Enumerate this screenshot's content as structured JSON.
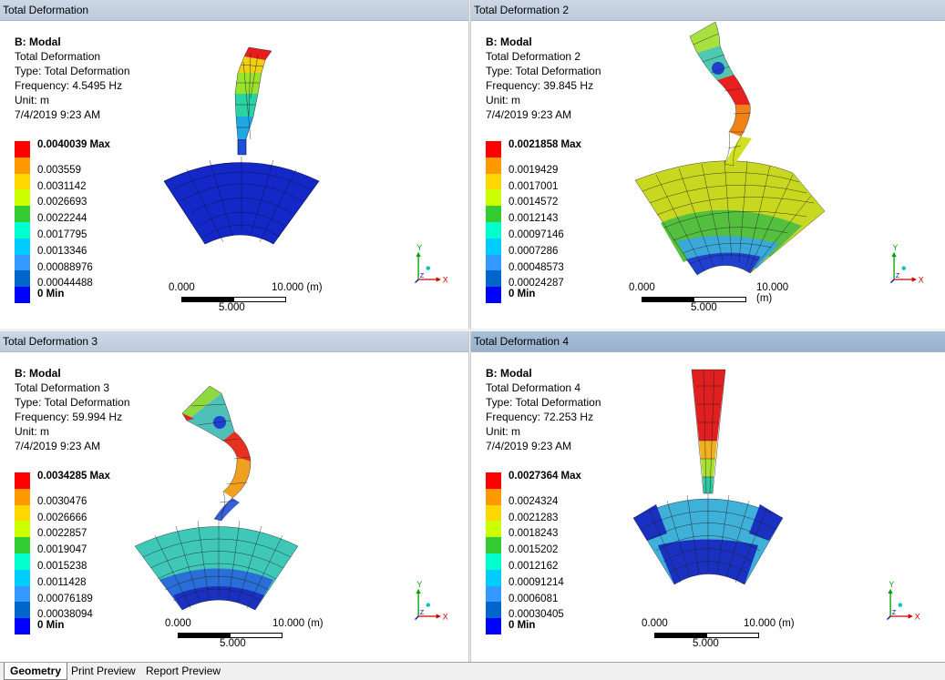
{
  "viewports": [
    {
      "header": "Total Deformation",
      "active": false,
      "info": [
        "B: Modal",
        "Total Deformation",
        "Type: Total Deformation",
        "Frequency: 4.5495 Hz",
        "Unit: m",
        "7/4/2019 9:23 AM"
      ],
      "legend": [
        "0.0040039 Max",
        "0.003559",
        "0.0031142",
        "0.0026693",
        "0.0022244",
        "0.0017795",
        "0.0013346",
        "0.00088976",
        "0.00044488",
        "0 Min"
      ],
      "scale": {
        "left": "0.000",
        "right": "10.000 (m)",
        "mid": "5.000"
      }
    },
    {
      "header": "Total Deformation 2",
      "active": false,
      "info": [
        "B: Modal",
        "Total Deformation 2",
        "Type: Total Deformation",
        "Frequency: 39.845 Hz",
        "Unit: m",
        "7/4/2019 9:23 AM"
      ],
      "legend": [
        "0.0021858 Max",
        "0.0019429",
        "0.0017001",
        "0.0014572",
        "0.0012143",
        "0.00097146",
        "0.0007286",
        "0.00048573",
        "0.00024287",
        "0 Min"
      ],
      "scale": {
        "left": "0.000",
        "right": "10.000 (m)",
        "mid": "5.000"
      }
    },
    {
      "header": "Total Deformation 3",
      "active": false,
      "info": [
        "B: Modal",
        "Total Deformation 3",
        "Type: Total Deformation",
        "Frequency: 59.994 Hz",
        "Unit: m",
        "7/4/2019 9:23 AM"
      ],
      "legend": [
        "0.0034285 Max",
        "0.0030476",
        "0.0026666",
        "0.0022857",
        "0.0019047",
        "0.0015238",
        "0.0011428",
        "0.00076189",
        "0.00038094",
        "0 Min"
      ],
      "scale": {
        "left": "0.000",
        "right": "10.000 (m)",
        "mid": "5.000"
      }
    },
    {
      "header": "Total Deformation 4",
      "active": true,
      "info": [
        "B: Modal",
        "Total Deformation 4",
        "Type: Total Deformation",
        "Frequency: 72.253 Hz",
        "Unit: m",
        "7/4/2019 9:23 AM"
      ],
      "legend": [
        "0.0027364 Max",
        "0.0024324",
        "0.0021283",
        "0.0018243",
        "0.0015202",
        "0.0012162",
        "0.00091214",
        "0.0006081",
        "0.00030405",
        "0 Min"
      ],
      "scale": {
        "left": "0.000",
        "right": "10.000 (m)",
        "mid": "5.000"
      }
    }
  ],
  "legend_colors": [
    "#ff0000",
    "#ff9900",
    "#ffd700",
    "#ccff00",
    "#33cc33",
    "#00ffcc",
    "#00ccff",
    "#3399ff",
    "#0066cc",
    "#0000ff"
  ],
  "triad": {
    "y": "Y",
    "x": "X",
    "z": "Z"
  },
  "tabs": [
    "Geometry",
    "Print Preview",
    "Report Preview"
  ],
  "colors": {
    "header_bg": "#c3cfdf",
    "header_active": "#9fb8d2",
    "mesh_line": "#1a1a1a"
  }
}
